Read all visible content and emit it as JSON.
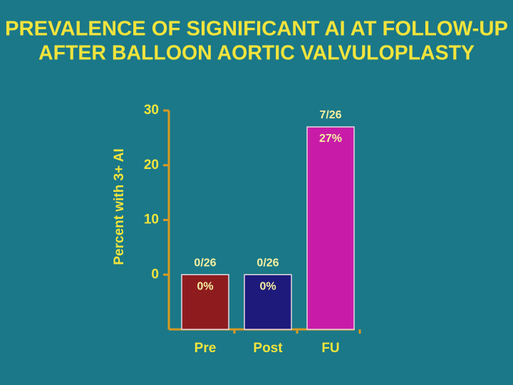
{
  "chart_data": {
    "type": "bar",
    "title": [
      "PREVALENCE OF SIGNIFICANT AI AT FOLLOW-UP",
      "AFTER BALLOON AORTIC VALVULOPLASTY"
    ],
    "y_label": "Percent with 3+ AI",
    "categories": [
      "Pre",
      "Post",
      "FU"
    ],
    "values": [
      0,
      0,
      27
    ],
    "value_labels": [
      "0%",
      "0%",
      "27%"
    ],
    "fractions": [
      "0/26",
      "0/26",
      "7/26"
    ],
    "colors": [
      "#8e1c1f",
      "#1e1a7c",
      "#c81ca8"
    ],
    "ylim": [
      -10,
      30
    ],
    "yticks": [
      0,
      10,
      20,
      30
    ]
  }
}
